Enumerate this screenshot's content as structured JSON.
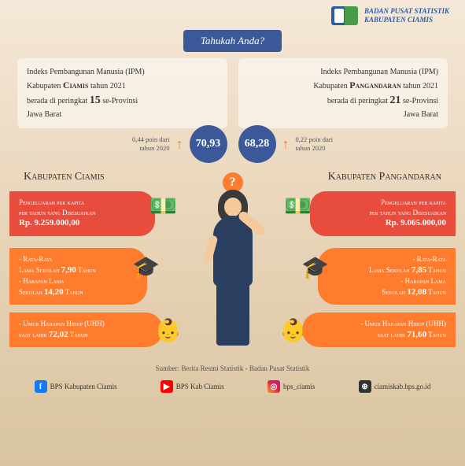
{
  "header": {
    "org1": "BADAN PUSAT STATISTIK",
    "org2": "KABUPATEN CIAMIS"
  },
  "tahukah": "Tahukah Anda?",
  "box1": {
    "t1": "Indeks Pembangunan Manusia (IPM)",
    "t2": "Kabupaten",
    "t3": "Ciamis",
    "t4": "tahun 2021",
    "t5": "berada di peringkat",
    "rank": "15",
    "t6": "se-Provinsi",
    "t7": "Jawa Barat"
  },
  "box2": {
    "t1": "Indeks Pembangunan Manusia (IPM)",
    "t2": "Kabupaten",
    "t3": "Pangandaran",
    "t4": "tahun 2021",
    "t5": "berada di peringkat",
    "rank": "21",
    "t6": "se-Provinsi",
    "t7": "Jawa Barat"
  },
  "circ1": {
    "val": "70,93",
    "poin": "0,44 poin dari\ntahun 2020"
  },
  "circ2": {
    "val": "68,28",
    "poin": "0,22 poin dari\ntahun 2020"
  },
  "region1": "Kabupaten Ciamis",
  "region2": "Kabupaten Pangandaran",
  "c1": {
    "l1": "Pengeluaran per kapita",
    "l2": "per tahun yang Disesuaikan",
    "val": "Rp. 9.259.000,00"
  },
  "c2": {
    "l1": "- Rata-Rata",
    "l2": "Lama Sekolah",
    "v1": "7,90",
    "u1": "Tahun",
    "l3": "- Harapan Lama",
    "l4": "Sekolah",
    "v2": "14,20",
    "u2": "Tahun"
  },
  "c3": {
    "l1": "- Umur Harapan Hidup (UHH)",
    "l2": "saat lahir",
    "val": "72,02",
    "u": "Tahun"
  },
  "c4": {
    "l1": "Pengeluaran per kapita",
    "l2": "per tahun yang Disesuaikan",
    "val": "Rp. 9.065.000,00"
  },
  "c5": {
    "l1": "- Rata-Rata",
    "l2": "Lama Sekolah",
    "v1": "7,85",
    "u1": "Tahun",
    "l3": "- Harapan Lama",
    "l4": "Sekolah",
    "v2": "12,08",
    "u2": "Tahun"
  },
  "c6": {
    "l1": "- Umur Harapan Hidup (UHH)",
    "l2": "saat lahir",
    "val": "71,60",
    "u": "Tahun"
  },
  "source": "Sumber: Berita Resmi Statistik - Badan Pusat Statistik",
  "footer": {
    "fb": "BPS Kabupaten Ciamis",
    "yt": "BPS Kab Ciamis",
    "ig": "bps_ciamis",
    "web": "ciamiskab.bps.go.id"
  }
}
